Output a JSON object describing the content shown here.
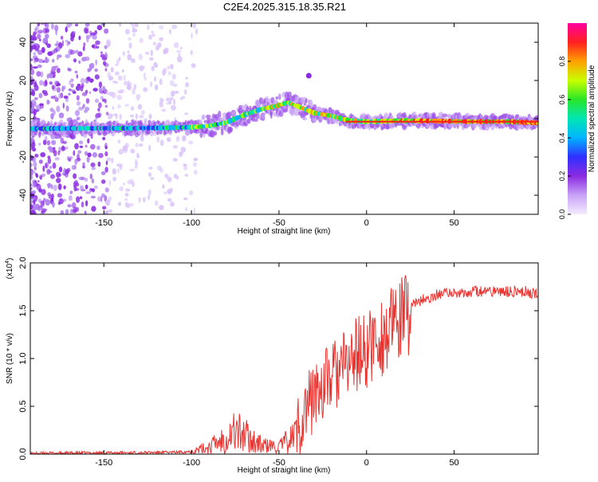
{
  "title": "C2E4.2025.315.18.35.R21",
  "colors": {
    "snr_line": "#e8332f",
    "axis": "#000000",
    "noise": "#a070e8",
    "background": "#ffffff"
  },
  "chart_data": [
    {
      "type": "heatmap",
      "title": "C2E4.2025.315.18.35.R21",
      "xlabel": "Height of straight line (km)",
      "ylabel": "Frequency (Hz)",
      "xlim": [
        -192,
        98
      ],
      "ylim": [
        -50,
        50
      ],
      "xticks": [
        -150,
        -100,
        -50,
        0,
        50
      ],
      "yticks": [
        -40,
        -20,
        0,
        20,
        40
      ],
      "colorbar": {
        "label": "Normalized spectral amplitude",
        "ticks": [
          "0.0",
          "0.2",
          "0.4",
          "0.6",
          "0.8"
        ],
        "range": [
          0,
          1
        ],
        "stops": [
          "#f4ecff",
          "#c9a2f6",
          "#8a2be2",
          "#3030ff",
          "#00b4ff",
          "#00e6b4",
          "#28e628",
          "#c8ff00",
          "#ffa000",
          "#ff2020",
          "#ff00a0"
        ]
      },
      "ridge": [
        {
          "x": -192,
          "y": -5.2
        },
        {
          "x": -170,
          "y": -5.1
        },
        {
          "x": -150,
          "y": -5.0
        },
        {
          "x": -140,
          "y": -5.0
        },
        {
          "x": -120,
          "y": -4.8
        },
        {
          "x": -100,
          "y": -4.5
        },
        {
          "x": -90,
          "y": -3.8
        },
        {
          "x": -80,
          "y": -2.0
        },
        {
          "x": -70,
          "y": 2.0
        },
        {
          "x": -60,
          "y": 5.0
        },
        {
          "x": -52,
          "y": 6.5
        },
        {
          "x": -45,
          "y": 8.5
        },
        {
          "x": -38,
          "y": 6.0
        },
        {
          "x": -30,
          "y": 3.0
        },
        {
          "x": -20,
          "y": 1.5
        },
        {
          "x": -10,
          "y": -1.0
        },
        {
          "x": 0,
          "y": -1.5
        },
        {
          "x": 10,
          "y": -1.3
        },
        {
          "x": 20,
          "y": -1.0
        },
        {
          "x": 40,
          "y": -1.2
        },
        {
          "x": 60,
          "y": -1.5
        },
        {
          "x": 80,
          "y": -1.5
        },
        {
          "x": 98,
          "y": -2.2
        }
      ]
    },
    {
      "type": "line",
      "xlabel": "Height of straight line (km)",
      "ylabel": "SNR (10 * v/v)",
      "y_multiplier": "(x10",
      "y_multiplier_exp": "4",
      "xlim": [
        -192,
        98
      ],
      "ylim": [
        0,
        2.0
      ],
      "xticks": [
        -150,
        -100,
        -50,
        0,
        50
      ],
      "yticks": [
        "0.0",
        "0.5",
        "1.0",
        "1.5",
        "2.0"
      ],
      "series": [
        {
          "name": "SNR",
          "envelope": [
            {
              "x": -192,
              "y": 0.01
            },
            {
              "x": -110,
              "y": 0.02
            },
            {
              "x": -100,
              "y": 0.03
            },
            {
              "x": -90,
              "y": 0.08
            },
            {
              "x": -80,
              "y": 0.2
            },
            {
              "x": -75,
              "y": 0.27
            },
            {
              "x": -68,
              "y": 0.2
            },
            {
              "x": -60,
              "y": 0.1
            },
            {
              "x": -50,
              "y": 0.08
            },
            {
              "x": -42,
              "y": 0.2
            },
            {
              "x": -35,
              "y": 0.5
            },
            {
              "x": -28,
              "y": 0.7
            },
            {
              "x": -20,
              "y": 0.85
            },
            {
              "x": -12,
              "y": 0.95
            },
            {
              "x": -5,
              "y": 1.1
            },
            {
              "x": 0,
              "y": 1.1
            },
            {
              "x": 5,
              "y": 1.25
            },
            {
              "x": 12,
              "y": 1.3
            },
            {
              "x": 20,
              "y": 1.45
            },
            {
              "x": 28,
              "y": 1.58
            },
            {
              "x": 38,
              "y": 1.66
            },
            {
              "x": 50,
              "y": 1.69
            },
            {
              "x": 60,
              "y": 1.7
            },
            {
              "x": 75,
              "y": 1.7
            },
            {
              "x": 90,
              "y": 1.7
            },
            {
              "x": 98,
              "y": 1.68
            }
          ]
        }
      ]
    }
  ]
}
